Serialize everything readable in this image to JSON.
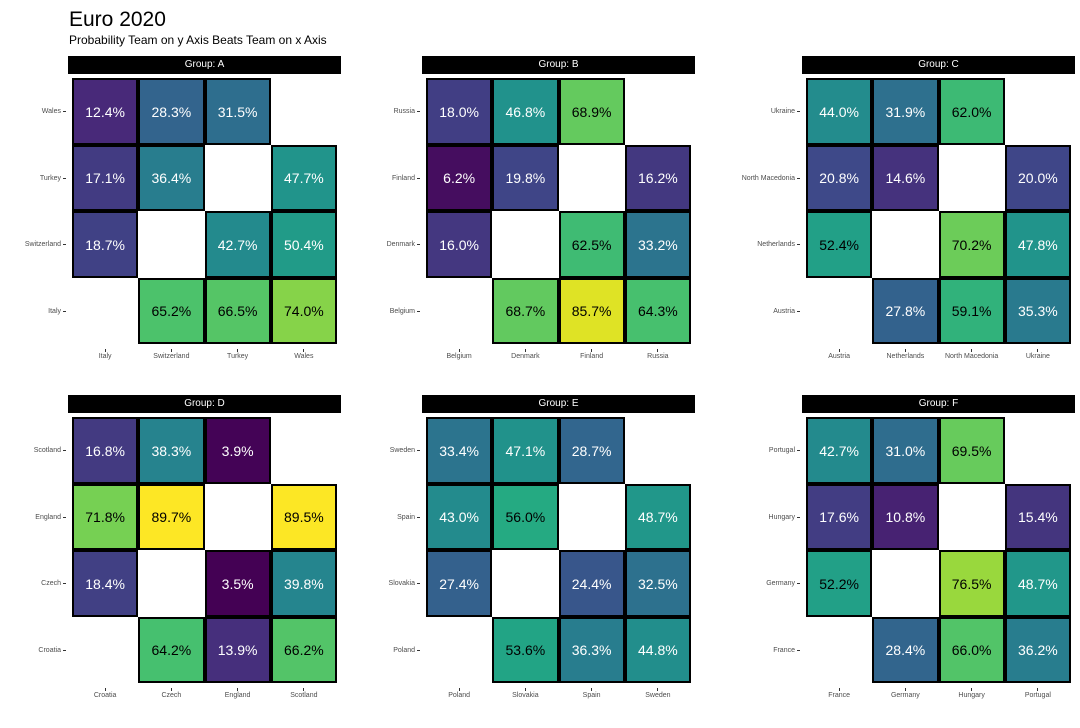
{
  "header": {
    "title": "Euro 2020",
    "subtitle": "Probability Team on y Axis Beats Team on x Axis"
  },
  "style": {
    "strip_bg": "#000000",
    "strip_text": "#ffffff",
    "axis_label_color": "#4d4d4d",
    "tick_color": "#333333",
    "tile_border": "#000000",
    "background": "#ffffff",
    "value_text_dark": "#000000",
    "value_text_light": "#ffffff"
  },
  "chart_data": [
    {
      "type": "heatmap",
      "group": "Group: A",
      "x_categories": [
        "Italy",
        "Switzerland",
        "Turkey",
        "Wales"
      ],
      "y_categories": [
        "Wales",
        "Turkey",
        "Switzerland",
        "Italy"
      ],
      "colormap": "viridis",
      "rows": [
        [
          {
            "label": "12.4%",
            "value": 12.4,
            "fill": "#482979",
            "text_color": "#ffffff"
          },
          {
            "label": "28.3%",
            "value": 28.3,
            "fill": "#33648d",
            "text_color": "#ffffff"
          },
          {
            "label": "31.5%",
            "value": 31.5,
            "fill": "#2e6e8e",
            "text_color": "#ffffff"
          },
          null
        ],
        [
          {
            "label": "17.1%",
            "value": 17.1,
            "fill": "#423b82",
            "text_color": "#ffffff"
          },
          {
            "label": "36.4%",
            "value": 36.4,
            "fill": "#287d8e",
            "text_color": "#ffffff"
          },
          null,
          {
            "label": "47.7%",
            "value": 47.7,
            "fill": "#21948b",
            "text_color": "#ffffff"
          }
        ],
        [
          {
            "label": "18.7%",
            "value": 18.7,
            "fill": "#404185",
            "text_color": "#ffffff"
          },
          null,
          {
            "label": "42.7%",
            "value": 42.7,
            "fill": "#238a8d",
            "text_color": "#ffffff"
          },
          {
            "label": "50.4%",
            "value": 50.4,
            "fill": "#219b88",
            "text_color": "#ffffff"
          }
        ],
        [
          null,
          {
            "label": "65.2%",
            "value": 65.2,
            "fill": "#4cc26b",
            "text_color": "#000000"
          },
          {
            "label": "66.5%",
            "value": 66.5,
            "fill": "#55c566",
            "text_color": "#000000"
          },
          {
            "label": "74.0%",
            "value": 74.0,
            "fill": "#86d349",
            "text_color": "#000000"
          }
        ]
      ]
    },
    {
      "type": "heatmap",
      "group": "Group: B",
      "x_categories": [
        "Belgium",
        "Denmark",
        "Finland",
        "Russia"
      ],
      "y_categories": [
        "Russia",
        "Finland",
        "Denmark",
        "Belgium"
      ],
      "colormap": "viridis",
      "rows": [
        [
          {
            "label": "18.0%",
            "value": 18.0,
            "fill": "#413e84",
            "text_color": "#ffffff"
          },
          {
            "label": "46.8%",
            "value": 46.8,
            "fill": "#21928c",
            "text_color": "#ffffff"
          },
          {
            "label": "68.9%",
            "value": 68.9,
            "fill": "#64ca5e",
            "text_color": "#000000"
          },
          null
        ],
        [
          {
            "label": "6.2%",
            "value": 6.2,
            "fill": "#450d5f",
            "text_color": "#ffffff"
          },
          {
            "label": "19.8%",
            "value": 19.8,
            "fill": "#3f4587",
            "text_color": "#ffffff"
          },
          null,
          {
            "label": "16.2%",
            "value": 16.2,
            "fill": "#433880",
            "text_color": "#ffffff"
          }
        ],
        [
          {
            "label": "16.0%",
            "value": 16.0,
            "fill": "#443780",
            "text_color": "#ffffff"
          },
          null,
          {
            "label": "62.5%",
            "value": 62.5,
            "fill": "#3fbb73",
            "text_color": "#000000"
          },
          {
            "label": "33.2%",
            "value": 33.2,
            "fill": "#2c748e",
            "text_color": "#ffffff"
          }
        ],
        [
          null,
          {
            "label": "68.7%",
            "value": 68.7,
            "fill": "#62c95f",
            "text_color": "#000000"
          },
          {
            "label": "85.7%",
            "value": 85.7,
            "fill": "#dfe325",
            "text_color": "#000000"
          },
          {
            "label": "64.3%",
            "value": 64.3,
            "fill": "#47c06e",
            "text_color": "#000000"
          }
        ]
      ]
    },
    {
      "type": "heatmap",
      "group": "Group: C",
      "x_categories": [
        "Austria",
        "Netherlands",
        "North Macedonia",
        "Ukraine"
      ],
      "y_categories": [
        "Ukraine",
        "North Macedonia",
        "Netherlands",
        "Austria"
      ],
      "colormap": "viridis",
      "rows": [
        [
          {
            "label": "44.0%",
            "value": 44.0,
            "fill": "#238c8d",
            "text_color": "#ffffff"
          },
          {
            "label": "31.9%",
            "value": 31.9,
            "fill": "#2e708e",
            "text_color": "#ffffff"
          },
          {
            "label": "62.0%",
            "value": 62.0,
            "fill": "#3dba74",
            "text_color": "#000000"
          },
          null
        ],
        [
          {
            "label": "20.8%",
            "value": 20.8,
            "fill": "#3e4989",
            "text_color": "#ffffff"
          },
          {
            "label": "14.6%",
            "value": 14.6,
            "fill": "#45327d",
            "text_color": "#ffffff"
          },
          null,
          {
            "label": "20.0%",
            "value": 20.0,
            "fill": "#3f4688",
            "text_color": "#ffffff"
          }
        ],
        [
          {
            "label": "52.4%",
            "value": 52.4,
            "fill": "#22a087",
            "text_color": "#000000"
          },
          null,
          {
            "label": "70.2%",
            "value": 70.2,
            "fill": "#6ccc59",
            "text_color": "#000000"
          },
          {
            "label": "47.8%",
            "value": 47.8,
            "fill": "#21948b",
            "text_color": "#ffffff"
          }
        ],
        [
          null,
          {
            "label": "27.8%",
            "value": 27.8,
            "fill": "#33628d",
            "text_color": "#ffffff"
          },
          {
            "label": "59.1%",
            "value": 59.1,
            "fill": "#31b27b",
            "text_color": "#000000"
          },
          {
            "label": "35.3%",
            "value": 35.3,
            "fill": "#297a8e",
            "text_color": "#ffffff"
          }
        ]
      ]
    },
    {
      "type": "heatmap",
      "group": "Group: D",
      "x_categories": [
        "Croatia",
        "Czech",
        "England",
        "Scotland"
      ],
      "y_categories": [
        "Scotland",
        "England",
        "Czech",
        "Croatia"
      ],
      "colormap": "viridis",
      "rows": [
        [
          {
            "label": "16.8%",
            "value": 16.8,
            "fill": "#433a81",
            "text_color": "#ffffff"
          },
          {
            "label": "38.3%",
            "value": 38.3,
            "fill": "#26838e",
            "text_color": "#ffffff"
          },
          {
            "label": "3.9%",
            "value": 3.9,
            "fill": "#440356",
            "text_color": "#ffffff"
          },
          null
        ],
        [
          {
            "label": "71.8%",
            "value": 71.8,
            "fill": "#76d053",
            "text_color": "#000000"
          },
          {
            "label": "89.7%",
            "value": 89.7,
            "fill": "#fde725",
            "text_color": "#000000"
          },
          null,
          {
            "label": "89.5%",
            "value": 89.5,
            "fill": "#fce725",
            "text_color": "#000000"
          }
        ],
        [
          {
            "label": "18.4%",
            "value": 18.4,
            "fill": "#414084",
            "text_color": "#ffffff"
          },
          null,
          {
            "label": "3.5%",
            "value": 3.5,
            "fill": "#440154",
            "text_color": "#ffffff"
          },
          {
            "label": "39.8%",
            "value": 39.8,
            "fill": "#25858e",
            "text_color": "#ffffff"
          }
        ],
        [
          null,
          {
            "label": "64.2%",
            "value": 64.2,
            "fill": "#46c06f",
            "text_color": "#000000"
          },
          {
            "label": "13.9%",
            "value": 13.9,
            "fill": "#462f7c",
            "text_color": "#ffffff"
          },
          {
            "label": "66.2%",
            "value": 66.2,
            "fill": "#53c468",
            "text_color": "#000000"
          }
        ]
      ]
    },
    {
      "type": "heatmap",
      "group": "Group: E",
      "x_categories": [
        "Poland",
        "Slovakia",
        "Spain",
        "Sweden"
      ],
      "y_categories": [
        "Sweden",
        "Spain",
        "Slovakia",
        "Poland"
      ],
      "colormap": "viridis",
      "rows": [
        [
          {
            "label": "33.4%",
            "value": 33.4,
            "fill": "#2c748e",
            "text_color": "#ffffff"
          },
          {
            "label": "47.1%",
            "value": 47.1,
            "fill": "#21928b",
            "text_color": "#ffffff"
          },
          {
            "label": "28.7%",
            "value": 28.7,
            "fill": "#32668e",
            "text_color": "#ffffff"
          },
          null
        ],
        [
          {
            "label": "43.0%",
            "value": 43.0,
            "fill": "#238b8d",
            "text_color": "#ffffff"
          },
          {
            "label": "56.0%",
            "value": 56.0,
            "fill": "#25aa82",
            "text_color": "#000000"
          },
          null,
          {
            "label": "48.7%",
            "value": 48.7,
            "fill": "#21978a",
            "text_color": "#ffffff"
          }
        ],
        [
          {
            "label": "27.4%",
            "value": 27.4,
            "fill": "#34618d",
            "text_color": "#ffffff"
          },
          null,
          {
            "label": "24.4%",
            "value": 24.4,
            "fill": "#38568b",
            "text_color": "#ffffff"
          },
          {
            "label": "32.5%",
            "value": 32.5,
            "fill": "#2d718e",
            "text_color": "#ffffff"
          }
        ],
        [
          null,
          {
            "label": "53.6%",
            "value": 53.6,
            "fill": "#22a485",
            "text_color": "#000000"
          },
          {
            "label": "36.3%",
            "value": 36.3,
            "fill": "#287d8e",
            "text_color": "#ffffff"
          },
          {
            "label": "44.8%",
            "value": 44.8,
            "fill": "#228e8c",
            "text_color": "#ffffff"
          }
        ]
      ]
    },
    {
      "type": "heatmap",
      "group": "Group: F",
      "x_categories": [
        "France",
        "Germany",
        "Hungary",
        "Portugal"
      ],
      "y_categories": [
        "Portugal",
        "Hungary",
        "Germany",
        "France"
      ],
      "colormap": "viridis",
      "rows": [
        [
          {
            "label": "42.7%",
            "value": 42.7,
            "fill": "#238a8d",
            "text_color": "#ffffff"
          },
          {
            "label": "31.0%",
            "value": 31.0,
            "fill": "#2f6d8e",
            "text_color": "#ffffff"
          },
          {
            "label": "69.5%",
            "value": 69.5,
            "fill": "#67cb5c",
            "text_color": "#000000"
          },
          null
        ],
        [
          {
            "label": "17.6%",
            "value": 17.6,
            "fill": "#423d83",
            "text_color": "#ffffff"
          },
          {
            "label": "10.8%",
            "value": 10.8,
            "fill": "#472272",
            "text_color": "#ffffff"
          },
          null,
          {
            "label": "15.4%",
            "value": 15.4,
            "fill": "#44357e",
            "text_color": "#ffffff"
          }
        ],
        [
          {
            "label": "52.2%",
            "value": 52.2,
            "fill": "#22a087",
            "text_color": "#000000"
          },
          null,
          {
            "label": "76.5%",
            "value": 76.5,
            "fill": "#99d83d",
            "text_color": "#000000"
          },
          {
            "label": "48.7%",
            "value": 48.7,
            "fill": "#21978a",
            "text_color": "#ffffff"
          }
        ],
        [
          null,
          {
            "label": "28.4%",
            "value": 28.4,
            "fill": "#32658d",
            "text_color": "#ffffff"
          },
          {
            "label": "66.0%",
            "value": 66.0,
            "fill": "#52c468",
            "text_color": "#000000"
          },
          {
            "label": "36.2%",
            "value": 36.2,
            "fill": "#287d8e",
            "text_color": "#ffffff"
          }
        ]
      ]
    }
  ]
}
